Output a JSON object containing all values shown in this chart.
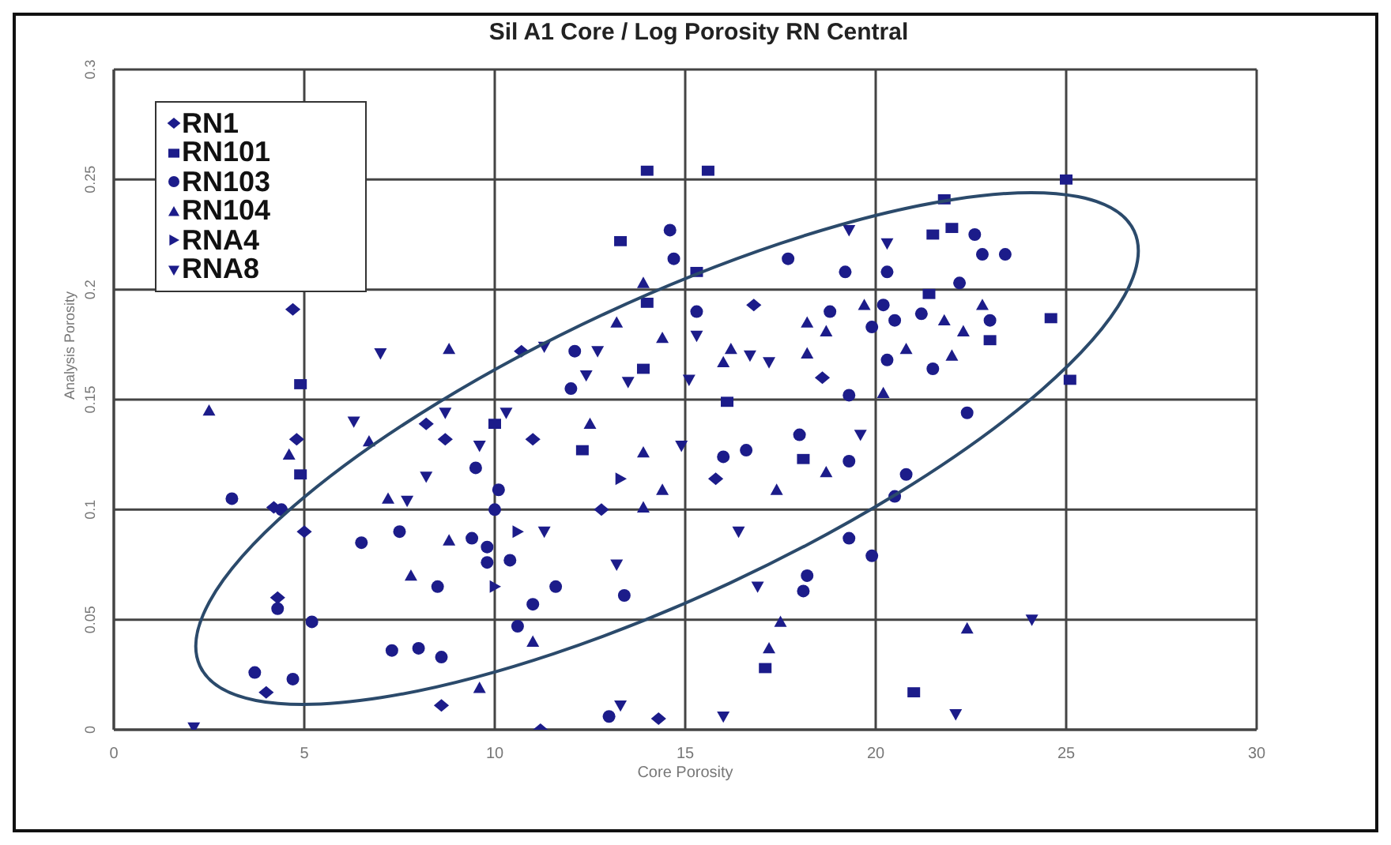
{
  "chart_data": {
    "type": "scatter",
    "title": "Sil A1 Core / Log Porosity RN Central",
    "xlabel": "Core Porosity",
    "ylabel": "Analysis Porosity",
    "xlim": [
      0,
      30
    ],
    "xticks": [
      0,
      5,
      10,
      15,
      20,
      25,
      30
    ],
    "ylim": [
      0,
      0.3
    ],
    "yticks": [
      0,
      0.05,
      0.1,
      0.15,
      0.2,
      0.25,
      0.3
    ],
    "grid": true,
    "legend": "top left",
    "series": [
      {
        "name": "RN1",
        "color": "#1c1c8a",
        "marker": "diamond",
        "x": [
          4.7,
          16.8,
          15.8,
          10.7,
          8.7,
          11.0,
          12.8,
          4.8,
          4.2,
          5.0,
          11.2,
          8.6,
          14.3,
          4.3,
          4.0,
          8.2,
          18.6
        ],
        "values": [
          0.191,
          0.193,
          0.114,
          0.172,
          0.132,
          0.132,
          0.1,
          0.132,
          0.101,
          0.09,
          0,
          0.011,
          0.005,
          0.06,
          0.017,
          0.139,
          0.16
        ]
      },
      {
        "name": "RN101",
        "color": "#1c1c8a",
        "marker": "square",
        "x": [
          14.0,
          15.6,
          13.3,
          14.0,
          4.9,
          4.9,
          21.8,
          22.0,
          21.5,
          21.4,
          23.0,
          25.0,
          24.6,
          25.1,
          12.3,
          17.1,
          21.0,
          16.1,
          18.1,
          15.3,
          10.0,
          13.9
        ],
        "values": [
          0.254,
          0.254,
          0.222,
          0.194,
          0.157,
          0.116,
          0.241,
          0.228,
          0.225,
          0.198,
          0.177,
          0.25,
          0.187,
          0.159,
          0.127,
          0.028,
          0.017,
          0.149,
          0.123,
          0.208,
          0.139,
          0.164
        ]
      },
      {
        "name": "RN103",
        "color": "#1c1c8a",
        "marker": "circle",
        "x": [
          14.6,
          17.7,
          22.8,
          23.4,
          22.6,
          22.2,
          20.3,
          19.2,
          18.8,
          20.2,
          21.2,
          20.5,
          19.9,
          23.0,
          15.3,
          20.3,
          21.5,
          19.3,
          22.4,
          18.0,
          19.3,
          16.0,
          16.6,
          20.8,
          20.5,
          19.3,
          19.9,
          18.2,
          18.1,
          12.1,
          12.0,
          14.7,
          9.5,
          10.1,
          3.1,
          4.4,
          10.0,
          6.5,
          7.5,
          9.4,
          9.8,
          9.8,
          10.4,
          8.5,
          11.6,
          13.4,
          4.3,
          5.2,
          10.6,
          7.3,
          8.0,
          8.6,
          3.7,
          4.7,
          13.0,
          11.0
        ],
        "values": [
          0.227,
          0.214,
          0.216,
          0.216,
          0.225,
          0.203,
          0.208,
          0.208,
          0.19,
          0.193,
          0.189,
          0.186,
          0.183,
          0.186,
          0.19,
          0.168,
          0.164,
          0.152,
          0.144,
          0.134,
          0.122,
          0.124,
          0.127,
          0.116,
          0.106,
          0.087,
          0.079,
          0.07,
          0.063,
          0.172,
          0.155,
          0.214,
          0.119,
          0.109,
          0.105,
          0.1,
          0.1,
          0.085,
          0.09,
          0.087,
          0.083,
          0.076,
          0.077,
          0.065,
          0.065,
          0.061,
          0.055,
          0.049,
          0.047,
          0.036,
          0.037,
          0.033,
          0.026,
          0.023,
          0.006,
          0.057
        ]
      },
      {
        "name": "RN104",
        "color": "#1c1c8a",
        "marker": "triangle",
        "x": [
          20.2,
          18.7,
          17.4,
          17.5,
          17.2,
          22.4,
          2.5,
          6.7,
          4.6,
          12.5,
          13.9,
          14.4,
          13.9,
          7.2,
          8.8,
          7.8,
          11.0,
          9.6,
          8.8,
          13.2,
          14.4,
          13.9,
          19.7,
          18.2,
          18.7,
          22.8,
          21.8,
          22.3,
          20.8,
          22.0,
          16.2,
          16.0,
          18.2
        ],
        "values": [
          0.153,
          0.117,
          0.109,
          0.049,
          0.037,
          0.046,
          0.145,
          0.131,
          0.125,
          0.139,
          0.126,
          0.109,
          0.101,
          0.105,
          0.086,
          0.07,
          0.04,
          0.019,
          0.173,
          0.185,
          0.178,
          0.203,
          0.193,
          0.185,
          0.181,
          0.193,
          0.186,
          0.181,
          0.173,
          0.17,
          0.173,
          0.167,
          0.171
        ]
      },
      {
        "name": "RNA4",
        "color": "#1c1c8a",
        "marker": "triangle-right",
        "x": [
          13.3,
          10.6,
          10.0
        ],
        "values": [
          0.114,
          0.09,
          0.065
        ]
      },
      {
        "name": "RNA8",
        "color": "#1c1c8a",
        "marker": "triangle-down",
        "x": [
          19.6,
          14.9,
          16.4,
          16.9,
          16.0,
          22.1,
          24.1,
          6.3,
          8.7,
          10.3,
          9.6,
          8.2,
          7.7,
          11.3,
          13.2,
          13.3,
          2.1,
          7.0,
          11.3,
          12.7,
          12.4,
          13.5,
          19.3,
          20.3,
          16.7,
          17.2,
          15.3,
          15.1
        ],
        "values": [
          0.134,
          0.129,
          0.09,
          0.065,
          0.006,
          0.007,
          0.05,
          0.14,
          0.144,
          0.144,
          0.129,
          0.115,
          0.104,
          0.09,
          0.075,
          0.011,
          0.001,
          0.171,
          0.174,
          0.172,
          0.161,
          0.158,
          0.227,
          0.221,
          0.17,
          0.167,
          0.179,
          0.159
        ]
      }
    ]
  }
}
